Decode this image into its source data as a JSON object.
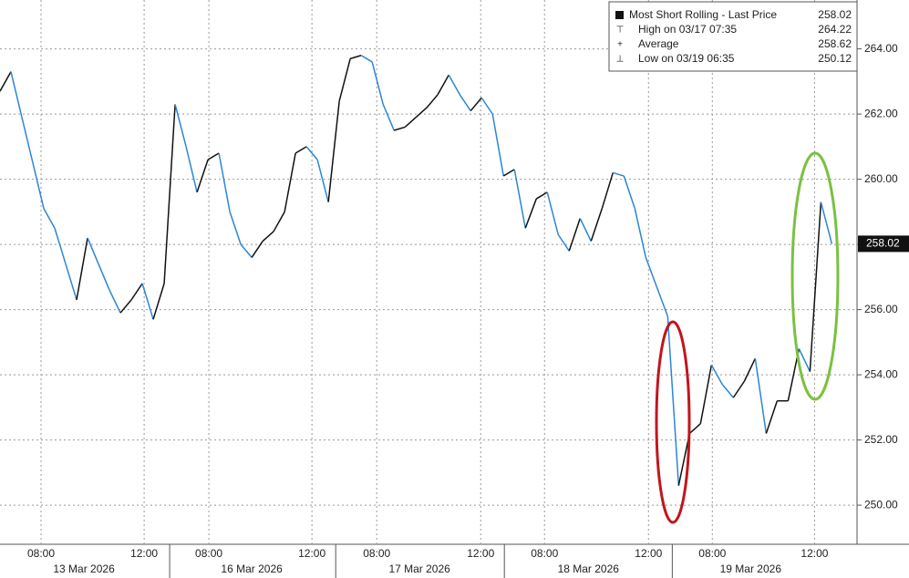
{
  "chart_data": {
    "type": "line",
    "legend": {
      "title": "Most Short Rolling - Last Price",
      "last": 258.02,
      "high_label": "High on 03/17 07:35",
      "high": 264.22,
      "average_label": "Average",
      "average": 258.62,
      "low_label": "Low on 03/19 06:35",
      "low": 250.12
    },
    "last_price_tag": 258.02,
    "up_color": "#111111",
    "down_color": "#2a86d6",
    "x": [
      0,
      1,
      2,
      3,
      4,
      5,
      6,
      7,
      8,
      9,
      10,
      11,
      12,
      13,
      14,
      15,
      16,
      17,
      18,
      19,
      20,
      21,
      22,
      23,
      24,
      25,
      26,
      27,
      28,
      29,
      30,
      31,
      32,
      33,
      34,
      35,
      36,
      37,
      38,
      39,
      40,
      41,
      42,
      43,
      44,
      45,
      46,
      47,
      48,
      49,
      50,
      51,
      52,
      53,
      54,
      55,
      56,
      57,
      58,
      59,
      60,
      61,
      62,
      63,
      64,
      65,
      66,
      67,
      68,
      69,
      70,
      71,
      72,
      73,
      74,
      75,
      76
    ],
    "values": [
      262.7,
      263.3,
      261.9,
      260.5,
      259.1,
      258.5,
      257.4,
      256.3,
      258.2,
      257.4,
      256.6,
      255.9,
      256.3,
      256.8,
      255.7,
      256.8,
      262.3,
      261.0,
      259.6,
      260.6,
      260.8,
      259.0,
      258.0,
      257.6,
      258.1,
      258.4,
      259.0,
      260.8,
      261.0,
      260.6,
      259.3,
      262.4,
      263.7,
      263.8,
      263.6,
      262.3,
      261.5,
      261.6,
      261.9,
      262.2,
      262.6,
      263.2,
      262.6,
      262.1,
      262.5,
      262.0,
      260.1,
      260.3,
      258.5,
      259.4,
      259.6,
      258.3,
      257.8,
      258.8,
      258.1,
      259.1,
      260.2,
      260.1,
      259.1,
      257.6,
      256.7,
      255.8,
      250.6,
      252.2,
      252.5,
      254.3,
      253.7,
      253.3,
      253.8,
      254.5,
      252.2,
      253.2,
      253.2,
      254.8,
      254.1,
      259.3,
      258.02
    ],
    "xlim": [
      0,
      78.3
    ],
    "xticks": [
      {
        "value": 3.75,
        "label": "08:00"
      },
      {
        "value": 13.17,
        "label": "12:00"
      },
      {
        "value": 19.08,
        "label": "08:00"
      },
      {
        "value": 28.5,
        "label": "12:00"
      },
      {
        "value": 34.42,
        "label": "08:00"
      },
      {
        "value": 43.92,
        "label": "12:00"
      },
      {
        "value": 49.75,
        "label": "08:00"
      },
      {
        "value": 59.25,
        "label": "12:00"
      },
      {
        "value": 65.08,
        "label": "08:00"
      },
      {
        "value": 74.42,
        "label": "12:00"
      }
    ],
    "date_labels": [
      {
        "value": 7.67,
        "label": "13 Mar 2026"
      },
      {
        "value": 23,
        "label": "16 Mar 2026"
      },
      {
        "value": 38.33,
        "label": "17 Mar 2026"
      },
      {
        "value": 53.75,
        "label": "18 Mar 2026"
      },
      {
        "value": 68.58,
        "label": "19 Mar 2026"
      }
    ],
    "session_breaks": [
      15.5,
      30.67,
      46.08,
      61.42
    ],
    "ylim": [
      248.8,
      265.5
    ],
    "yticks": [
      {
        "value": 250,
        "label": "250.00"
      },
      {
        "value": 252,
        "label": "252.00"
      },
      {
        "value": 254,
        "label": "254.00"
      },
      {
        "value": 256,
        "label": "256.00"
      },
      {
        "value": 258,
        "label": "258.00"
      },
      {
        "value": 260,
        "label": "260.00"
      },
      {
        "value": 262,
        "label": "262.00"
      },
      {
        "value": 264,
        "label": "264.00"
      }
    ],
    "grid": true
  }
}
